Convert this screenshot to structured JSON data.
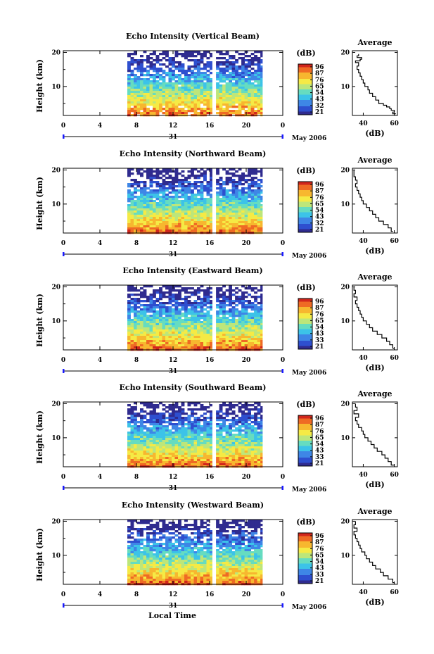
{
  "colors": {
    "background": "#ffffff",
    "axis": "#000000",
    "line": "#000000",
    "scale_endpoints": "#1a1aff",
    "colormap": [
      "#2f2b8f",
      "#2e4fcf",
      "#3e86e6",
      "#3cc3e8",
      "#66dcc0",
      "#bde67a",
      "#f5ea45",
      "#f7b72f",
      "#ef6a24",
      "#d1261c"
    ]
  },
  "chart_data": [
    {
      "type": "heatmap",
      "title": "Echo Intensity (Vertical Beam)",
      "ylabel": "Height (km)",
      "x_ticks": [
        "0",
        "4",
        "8",
        "12",
        "16",
        "20",
        "0"
      ],
      "date_label": "31",
      "month_label": "May 2006",
      "xlim_hours": [
        0,
        24
      ],
      "ylim_km": [
        1.5,
        20.5
      ],
      "y_ticks": [
        "10",
        "20"
      ],
      "data_hours": [
        [
          7.0,
          16.3
        ],
        [
          16.7,
          21.8
        ]
      ],
      "colorbar_unit": "(dB)",
      "colorbar_ticks": [
        "96",
        "87",
        "76",
        "65",
        "54",
        "43",
        "32",
        "21"
      ],
      "average": {
        "title": "Average",
        "xlabel": "(dB)",
        "x_ticks": [
          "40",
          "60"
        ],
        "xlim": [
          33,
          62
        ],
        "y_ticks": [
          "10",
          "20"
        ],
        "height_km": [
          2,
          2.5,
          3,
          3.5,
          4,
          4.5,
          5,
          6,
          7,
          8,
          9,
          10,
          11,
          12,
          13,
          14,
          15,
          16,
          17,
          17.5,
          18,
          18.5,
          19,
          19.5
        ],
        "intensity_db": [
          61,
          59,
          60,
          58,
          57,
          55,
          53,
          50,
          48,
          46,
          44,
          43,
          41,
          40,
          39,
          38,
          37,
          36,
          37,
          35,
          38,
          39,
          36,
          37
        ]
      }
    },
    {
      "type": "heatmap",
      "title": "Echo Intensity (Northward Beam)",
      "ylabel": "Height (km)",
      "x_ticks": [
        "0",
        "4",
        "8",
        "12",
        "16",
        "20",
        "0"
      ],
      "date_label": "31",
      "month_label": "May 2006",
      "xlim_hours": [
        0,
        24
      ],
      "ylim_km": [
        1.5,
        20.5
      ],
      "y_ticks": [
        "10",
        "20"
      ],
      "data_hours": [
        [
          7.0,
          16.3
        ],
        [
          16.7,
          21.8
        ]
      ],
      "colorbar_unit": "(dB)",
      "colorbar_ticks": [
        "96",
        "87",
        "76",
        "65",
        "54",
        "43",
        "32",
        "21"
      ],
      "average": {
        "title": "Average",
        "xlabel": "(dB)",
        "x_ticks": [
          "40",
          "60"
        ],
        "xlim": [
          33,
          62
        ],
        "y_ticks": [
          "10",
          "20"
        ],
        "height_km": [
          2,
          3,
          4,
          5,
          6,
          7,
          8,
          9,
          10,
          11,
          12,
          13,
          14,
          15,
          16,
          17,
          18,
          19,
          20
        ],
        "intensity_db": [
          59,
          58,
          56,
          53,
          50,
          48,
          46,
          44,
          42,
          40,
          39,
          38,
          37,
          36,
          35,
          36,
          35,
          34,
          34
        ]
      }
    },
    {
      "type": "heatmap",
      "title": "Echo Intensity (Eastward Beam)",
      "ylabel": "Height (km)",
      "x_ticks": [
        "0",
        "4",
        "8",
        "12",
        "16",
        "20",
        "0"
      ],
      "date_label": "31",
      "month_label": "May 2006",
      "xlim_hours": [
        0,
        24
      ],
      "ylim_km": [
        1.5,
        20.5
      ],
      "y_ticks": [
        "10",
        "20"
      ],
      "data_hours": [
        [
          7.0,
          16.3
        ],
        [
          16.7,
          21.8
        ]
      ],
      "colorbar_unit": "(dB)",
      "colorbar_ticks": [
        "96",
        "87",
        "76",
        "65",
        "54",
        "43",
        "33",
        "21"
      ],
      "average": {
        "title": "Average",
        "xlabel": "(dB)",
        "x_ticks": [
          "40",
          "60"
        ],
        "xlim": [
          33,
          62
        ],
        "y_ticks": [
          "10",
          "20"
        ],
        "height_km": [
          2,
          3,
          4,
          5,
          6,
          7,
          8,
          9,
          10,
          11,
          12,
          13,
          14,
          15,
          16,
          17,
          18,
          19,
          20
        ],
        "intensity_db": [
          60,
          59,
          57,
          55,
          52,
          49,
          46,
          44,
          42,
          40,
          39,
          38,
          37,
          36,
          35,
          36,
          34,
          35,
          34
        ]
      }
    },
    {
      "type": "heatmap",
      "title": "Echo Intensity (Southward Beam)",
      "ylabel": "Height (km)",
      "x_ticks": [
        "0",
        "4",
        "8",
        "12",
        "16",
        "20",
        "0"
      ],
      "date_label": "31",
      "month_label": "May 2006",
      "xlim_hours": [
        0,
        24
      ],
      "ylim_km": [
        1.5,
        20.5
      ],
      "y_ticks": [
        "10",
        "20"
      ],
      "data_hours": [
        [
          7.0,
          16.3
        ],
        [
          16.7,
          21.8
        ]
      ],
      "colorbar_unit": "(dB)",
      "colorbar_ticks": [
        "96",
        "87",
        "76",
        "65",
        "54",
        "43",
        "33",
        "21"
      ],
      "average": {
        "title": "Average",
        "xlabel": "(dB)",
        "x_ticks": [
          "40",
          "60"
        ],
        "xlim": [
          33,
          62
        ],
        "y_ticks": [
          "10",
          "20"
        ],
        "height_km": [
          2,
          3,
          4,
          5,
          6,
          7,
          8,
          9,
          10,
          11,
          12,
          13,
          14,
          15,
          16,
          17,
          18,
          19,
          20
        ],
        "intensity_db": [
          60,
          58,
          56,
          54,
          52,
          49,
          47,
          45,
          43,
          41,
          40,
          39,
          37,
          36,
          35,
          37,
          34,
          36,
          35
        ]
      }
    },
    {
      "type": "heatmap",
      "title": "Echo Intensity (Westward Beam)",
      "ylabel": "Height (km)",
      "x_ticks": [
        "0",
        "4",
        "8",
        "12",
        "16",
        "20",
        "0"
      ],
      "date_label": "31",
      "month_label": "May 2006",
      "xlim_hours": [
        0,
        24
      ],
      "ylim_km": [
        1.5,
        20.5
      ],
      "y_ticks": [
        "10",
        "20"
      ],
      "data_hours": [
        [
          7.0,
          16.3
        ],
        [
          16.7,
          21.8
        ]
      ],
      "colorbar_unit": "(dB)",
      "colorbar_ticks": [
        "96",
        "87",
        "76",
        "65",
        "54",
        "43",
        "33",
        "21"
      ],
      "average": {
        "title": "Average",
        "xlabel": "(dB)",
        "x_ticks": [
          "40",
          "60"
        ],
        "xlim": [
          33,
          62
        ],
        "y_ticks": [
          "10",
          "20"
        ],
        "height_km": [
          2,
          3,
          4,
          5,
          6,
          7,
          8,
          9,
          10,
          11,
          12,
          13,
          14,
          15,
          16,
          17,
          18,
          19,
          20
        ],
        "intensity_db": [
          60,
          59,
          56,
          53,
          51,
          48,
          46,
          44,
          42,
          41,
          39,
          38,
          37,
          36,
          35,
          34,
          36,
          34,
          35
        ]
      }
    }
  ],
  "footer": {
    "xlabel": "Local Time"
  }
}
